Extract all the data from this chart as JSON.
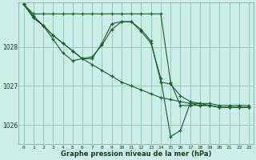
{
  "title": "Graphe pression niveau de la mer (hPa)",
  "bg_color": "#cceee8",
  "grid_color": "#99ccbb",
  "line_color": "#1a5e2a",
  "xlim": [
    -0.5,
    23.5
  ],
  "ylim": [
    1025.5,
    1029.15
  ],
  "yticks": [
    1026,
    1027,
    1028
  ],
  "xticks": [
    0,
    1,
    2,
    3,
    4,
    5,
    6,
    7,
    8,
    9,
    10,
    11,
    12,
    13,
    14,
    15,
    16,
    17,
    18,
    19,
    20,
    21,
    22,
    23
  ],
  "series": [
    {
      "x": [
        0,
        1,
        2,
        3,
        4,
        5,
        6,
        7,
        8,
        9,
        10,
        11,
        12,
        13,
        14,
        15,
        16,
        17,
        18,
        19,
        20,
        21,
        22,
        23
      ],
      "y": [
        1029.1,
        1028.85,
        1028.85,
        1028.85,
        1028.85,
        1028.85,
        1028.85,
        1028.85,
        1028.85,
        1028.85,
        1028.85,
        1028.85,
        1028.85,
        1028.85,
        1028.85,
        1027.1,
        1026.5,
        1026.5,
        1026.5,
        1026.5,
        1026.45,
        1026.45,
        1026.45,
        1026.45
      ]
    },
    {
      "x": [
        0,
        1,
        2,
        3,
        4,
        5,
        6,
        7,
        8,
        9,
        10,
        11,
        12,
        13,
        14,
        15,
        16,
        17,
        18,
        19,
        20,
        21,
        22,
        23
      ],
      "y": [
        1029.1,
        1028.8,
        1028.55,
        1028.3,
        1028.1,
        1027.9,
        1027.7,
        1027.55,
        1027.4,
        1027.25,
        1027.1,
        1027.0,
        1026.9,
        1026.8,
        1026.7,
        1026.65,
        1026.6,
        1026.55,
        1026.5,
        1026.5,
        1026.45,
        1026.45,
        1026.45,
        1026.45
      ]
    },
    {
      "x": [
        0,
        1,
        2,
        3,
        4,
        5,
        6,
        7,
        8,
        9,
        10,
        11,
        12,
        13,
        14,
        15,
        16,
        17,
        18,
        19,
        20,
        21,
        22,
        23
      ],
      "y": [
        1029.1,
        1028.75,
        1028.55,
        1028.3,
        1028.1,
        1027.9,
        1027.7,
        1027.75,
        1028.05,
        1028.45,
        1028.65,
        1028.65,
        1028.45,
        1028.15,
        1027.1,
        1027.05,
        1026.75,
        1026.6,
        1026.55,
        1026.5,
        1026.45,
        1026.45,
        1026.45,
        1026.45
      ]
    },
    {
      "x": [
        0,
        1,
        2,
        3,
        4,
        5,
        6,
        7,
        8,
        9,
        10,
        11,
        12,
        13,
        14,
        15,
        16,
        17,
        18,
        19,
        20,
        21,
        22,
        23
      ],
      "y": [
        1029.1,
        1028.75,
        1028.55,
        1028.2,
        1027.85,
        1027.65,
        1027.7,
        1027.7,
        1028.1,
        1028.6,
        1028.65,
        1028.65,
        1028.4,
        1028.1,
        1027.2,
        1025.7,
        1025.85,
        1026.55,
        1026.55,
        1026.55,
        1026.5,
        1026.5,
        1026.5,
        1026.5
      ]
    }
  ]
}
